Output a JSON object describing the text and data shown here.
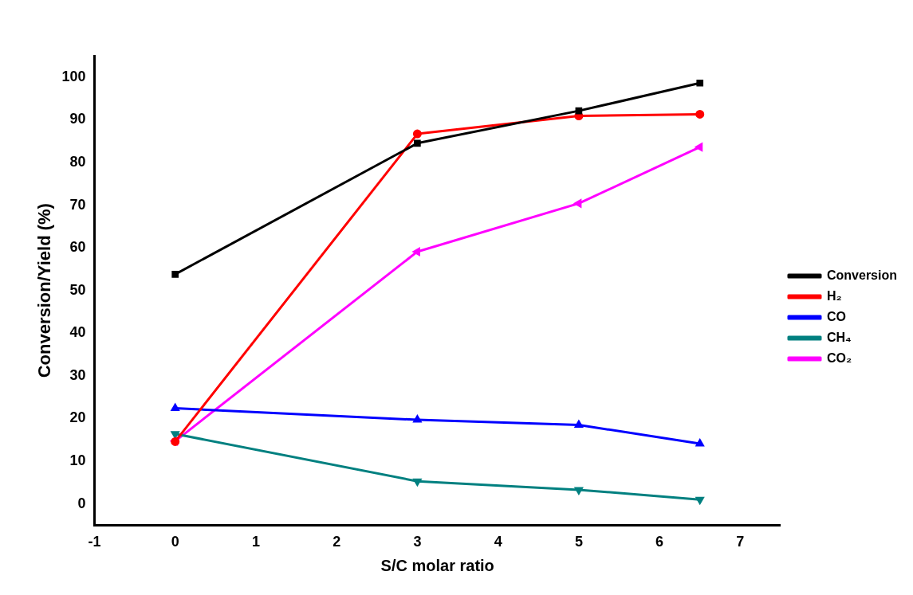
{
  "chart_data": {
    "type": "line",
    "xlabel": "S/C molar ratio",
    "ylabel": "Conversion/Yield (%)",
    "x": [
      0,
      3,
      5,
      6.5
    ],
    "xlim": [
      -1,
      7.5
    ],
    "xticks": [
      -1,
      0,
      1,
      2,
      3,
      4,
      5,
      6,
      7
    ],
    "ylim": [
      -5,
      105
    ],
    "yticks": [
      0,
      10,
      20,
      30,
      40,
      50,
      60,
      70,
      80,
      90,
      100
    ],
    "grid": false,
    "legend": "right",
    "line_style": "solid",
    "series": [
      {
        "name": "Conversion",
        "color": "#000000",
        "marker": "square",
        "values": [
          53.8,
          84.5,
          92.1,
          98.6
        ]
      },
      {
        "name": "H₂",
        "color": "#ff0000",
        "marker": "circle",
        "values": [
          14.6,
          86.7,
          90.9,
          91.3
        ]
      },
      {
        "name": "CO",
        "color": "#0000ff",
        "marker": "triangle",
        "values": [
          22.4,
          19.7,
          18.5,
          14.1
        ]
      },
      {
        "name": "CH₄",
        "color": "#008080",
        "marker": "triangle-down",
        "values": [
          16.4,
          5.3,
          3.3,
          1.0
        ]
      },
      {
        "name": "CO₂",
        "color": "#ff00ff",
        "marker": "triangle-left",
        "values": [
          14.7,
          59.1,
          70.4,
          83.6
        ]
      }
    ]
  }
}
